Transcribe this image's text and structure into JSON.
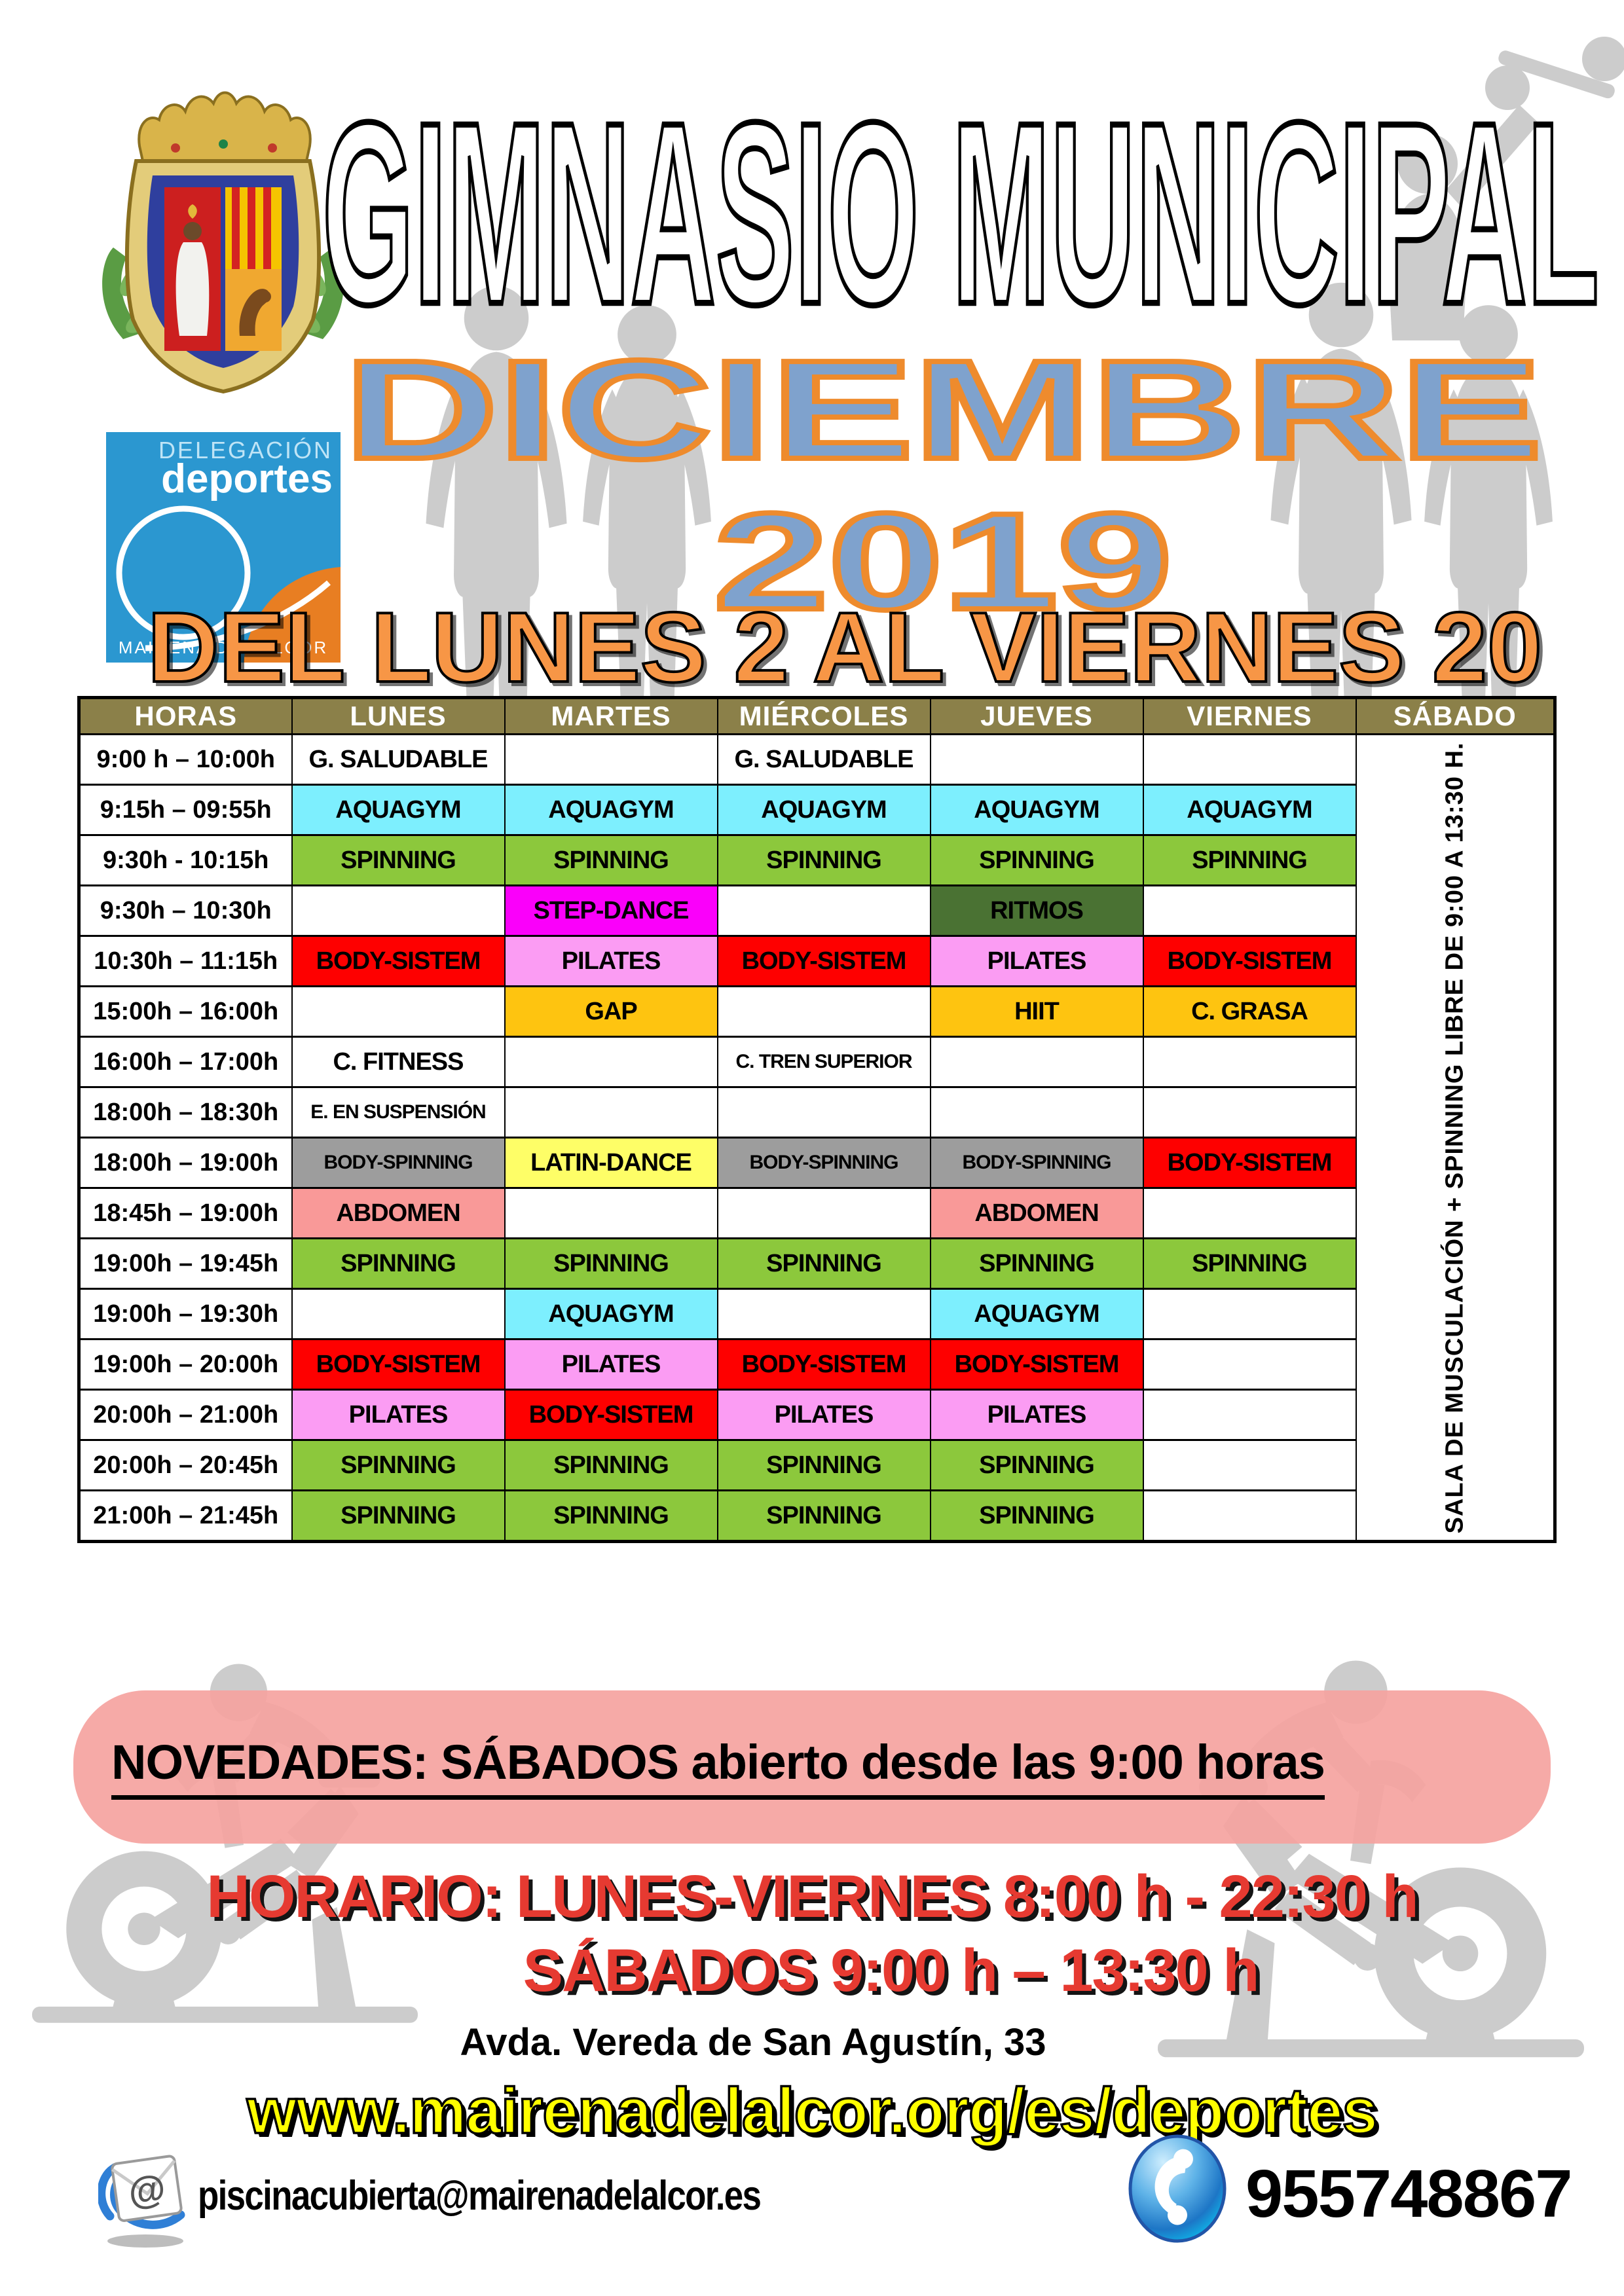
{
  "header": {
    "title": "GIMNASIO MUNICIPAL",
    "month": "DICIEMBRE",
    "year": "2019",
    "date_range": "DEL LUNES 2 AL VIERNES 20"
  },
  "logo": {
    "line1": "DELEGACIÓN",
    "line2": "deportes",
    "footer": "MAIRENA DEL ALCOR"
  },
  "schedule": {
    "columns": [
      "HORAS",
      "LUNES",
      "MARTES",
      "MIÉRCOLES",
      "JUEVES",
      "VIERNES",
      "SÁBADO"
    ],
    "saturday_note": "SALA DE MUSCULACIÓN + SPINNING LIBRE DE 9:00 A 13:30 H.",
    "rows": [
      {
        "time": "9:00 h – 10:00h",
        "cells": [
          {
            "text": "G. SALUDABLE",
            "color": "white"
          },
          null,
          {
            "text": "G. SALUDABLE",
            "color": "white"
          },
          null,
          null
        ]
      },
      {
        "time": "9:15h – 09:55h",
        "cells": [
          {
            "text": "AQUAGYM",
            "color": "cyan"
          },
          {
            "text": "AQUAGYM",
            "color": "cyan"
          },
          {
            "text": "AQUAGYM",
            "color": "cyan"
          },
          {
            "text": "AQUAGYM",
            "color": "cyan"
          },
          {
            "text": "AQUAGYM",
            "color": "cyan"
          }
        ]
      },
      {
        "time": "9:30h - 10:15h",
        "cells": [
          {
            "text": "SPINNING",
            "color": "green"
          },
          {
            "text": "SPINNING",
            "color": "green"
          },
          {
            "text": "SPINNING",
            "color": "green"
          },
          {
            "text": "SPINNING",
            "color": "green"
          },
          {
            "text": "SPINNING",
            "color": "green"
          }
        ]
      },
      {
        "time": "9:30h – 10:30h",
        "cells": [
          null,
          {
            "text": "STEP-DANCE",
            "color": "magenta"
          },
          null,
          {
            "text": "RITMOS",
            "color": "darkgreen"
          },
          null
        ]
      },
      {
        "time": "10:30h – 11:15h",
        "cells": [
          {
            "text": "BODY-SISTEM",
            "color": "red"
          },
          {
            "text": "PILATES",
            "color": "pink"
          },
          {
            "text": "BODY-SISTEM",
            "color": "red"
          },
          {
            "text": "PILATES",
            "color": "pink"
          },
          {
            "text": "BODY-SISTEM",
            "color": "red"
          }
        ]
      },
      {
        "time": "15:00h – 16:00h",
        "cells": [
          null,
          {
            "text": "GAP",
            "color": "gold"
          },
          null,
          {
            "text": "HIIT",
            "color": "gold"
          },
          {
            "text": "C. GRASA",
            "color": "gold"
          }
        ]
      },
      {
        "time": "16:00h – 17:00h",
        "cells": [
          {
            "text": "C. FITNESS",
            "color": "white"
          },
          null,
          {
            "text": "C. TREN SUPERIOR",
            "color": "white",
            "small": true
          },
          null,
          null
        ]
      },
      {
        "time": "18:00h – 18:30h",
        "cells": [
          {
            "text": "E. EN SUSPENSIÓN",
            "color": "white",
            "small": true
          },
          null,
          null,
          null,
          null
        ]
      },
      {
        "time": "18:00h – 19:00h",
        "cells": [
          {
            "text": "BODY-SPINNING",
            "color": "gray",
            "small": true
          },
          {
            "text": "LATIN-DANCE",
            "color": "yellow"
          },
          {
            "text": "BODY-SPINNING",
            "color": "gray",
            "small": true
          },
          {
            "text": "BODY-SPINNING",
            "color": "gray",
            "small": true
          },
          {
            "text": "BODY-SISTEM",
            "color": "red"
          }
        ]
      },
      {
        "time": "18:45h – 19:00h",
        "cells": [
          {
            "text": "ABDOMEN",
            "color": "salmon"
          },
          null,
          null,
          {
            "text": "ABDOMEN",
            "color": "salmon"
          },
          null
        ]
      },
      {
        "time": "19:00h – 19:45h",
        "cells": [
          {
            "text": "SPINNING",
            "color": "green"
          },
          {
            "text": "SPINNING",
            "color": "green"
          },
          {
            "text": "SPINNING",
            "color": "green"
          },
          {
            "text": "SPINNING",
            "color": "green"
          },
          {
            "text": "SPINNING",
            "color": "green"
          }
        ]
      },
      {
        "time": "19:00h – 19:30h",
        "cells": [
          null,
          {
            "text": "AQUAGYM",
            "color": "cyan"
          },
          null,
          {
            "text": "AQUAGYM",
            "color": "cyan"
          },
          null
        ]
      },
      {
        "time": "19:00h – 20:00h",
        "cells": [
          {
            "text": "BODY-SISTEM",
            "color": "red"
          },
          {
            "text": "PILATES",
            "color": "pink"
          },
          {
            "text": "BODY-SISTEM",
            "color": "red"
          },
          {
            "text": "BODY-SISTEM",
            "color": "red"
          },
          null
        ]
      },
      {
        "time": "20:00h – 21:00h",
        "cells": [
          {
            "text": "PILATES",
            "color": "pink"
          },
          {
            "text": "BODY-SISTEM",
            "color": "red"
          },
          {
            "text": "PILATES",
            "color": "pink"
          },
          {
            "text": "PILATES",
            "color": "pink"
          },
          null
        ]
      },
      {
        "time": "20:00h – 20:45h",
        "cells": [
          {
            "text": "SPINNING",
            "color": "green"
          },
          {
            "text": "SPINNING",
            "color": "green"
          },
          {
            "text": "SPINNING",
            "color": "green"
          },
          {
            "text": "SPINNING",
            "color": "green"
          },
          null
        ]
      },
      {
        "time": "21:00h – 21:45h",
        "cells": [
          {
            "text": "SPINNING",
            "color": "green"
          },
          {
            "text": "SPINNING",
            "color": "green"
          },
          {
            "text": "SPINNING",
            "color": "green"
          },
          {
            "text": "SPINNING",
            "color": "green"
          },
          null
        ]
      }
    ]
  },
  "palette": {
    "white": "#ffffff",
    "cyan": "#7deffe",
    "green": "#8cc83c",
    "magenta": "#fa00fa",
    "darkgreen": "#4a7233",
    "red": "#fe0000",
    "pink": "#fb9cf3",
    "gold": "#fec410",
    "gray": "#9d9d9d",
    "yellow": "#fefe67",
    "salmon": "#f99998",
    "header_olive": "#8b8049",
    "banner_pink": "#f5a3a0",
    "month_fill": "#7fa2cd",
    "month_stroke": "#ee8b2d",
    "range_orange": "#f79646",
    "horario_red": "#e63a31",
    "website_yellow": "#ffff00"
  },
  "banner": {
    "text": "NOVEDADES: SÁBADOS abierto desde las 9:00 horas"
  },
  "footer": {
    "horario_line1": "HORARIO: LUNES-VIERNES 8:00 h - 22:30 h",
    "horario_line2": "SÁBADOS 9:00 h – 13:30 h",
    "address": "Avda. Vereda de San Agustín, 33",
    "website": "www.mairenadelalcor.org/es/deportes"
  },
  "contact": {
    "email": "piscinacubierta@mairenadelalcor.es",
    "phone": "955748867"
  }
}
